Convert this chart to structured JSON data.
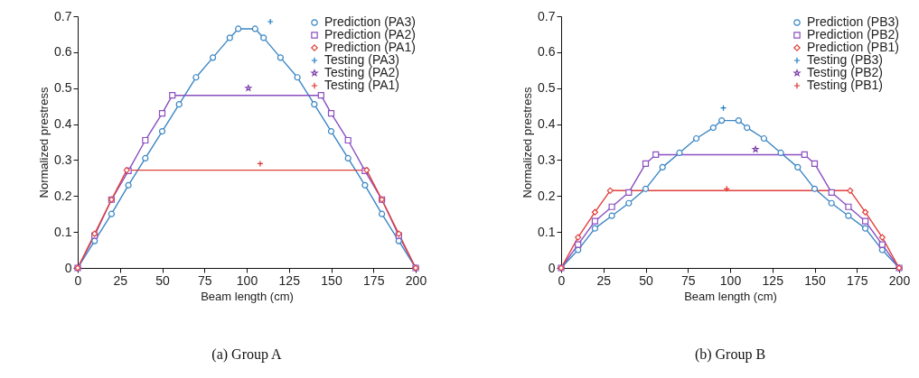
{
  "chart_data": [
    {
      "type": "line",
      "xlabel": "Beam length (cm)",
      "ylabel": "Normalized prestress",
      "xlim": [
        0,
        200
      ],
      "xticks": [
        0,
        25,
        50,
        75,
        100,
        125,
        150,
        175,
        200
      ],
      "ylim": [
        0,
        0.7
      ],
      "yticks": [
        0,
        0.1,
        0.2,
        0.3,
        0.4,
        0.5,
        0.6,
        0.7
      ],
      "legend": "top right",
      "annotations": [
        "(a) Group A"
      ],
      "series": [
        {
          "name": "Prediction (PA3)",
          "type": "line",
          "color": "#3a86c4",
          "marker": "circle",
          "x": [
            0,
            10,
            20,
            30,
            40,
            50,
            60,
            70,
            80,
            90,
            95,
            105,
            110,
            120,
            130,
            140,
            150,
            160,
            170,
            180,
            190,
            200
          ],
          "values": [
            0,
            0.075,
            0.15,
            0.23,
            0.305,
            0.38,
            0.455,
            0.53,
            0.585,
            0.64,
            0.665,
            0.665,
            0.64,
            0.585,
            0.53,
            0.455,
            0.38,
            0.305,
            0.23,
            0.15,
            0.075,
            0
          ]
        },
        {
          "name": "Prediction (PA2)",
          "type": "line",
          "color": "#8a4fc0",
          "marker": "square",
          "x": [
            0,
            10,
            20,
            30,
            40,
            50,
            56,
            144,
            150,
            160,
            170,
            180,
            190,
            200
          ],
          "values": [
            0,
            0.09,
            0.19,
            0.27,
            0.355,
            0.43,
            0.48,
            0.48,
            0.43,
            0.355,
            0.27,
            0.19,
            0.09,
            0
          ]
        },
        {
          "name": "Prediction (PA1)",
          "type": "line",
          "color": "#e0403c",
          "marker": "diamond",
          "x": [
            0,
            10,
            20,
            29,
            171,
            180,
            190,
            200
          ],
          "values": [
            0,
            0.095,
            0.19,
            0.272,
            0.272,
            0.19,
            0.095,
            0
          ]
        },
        {
          "name": "Testing (PA3)",
          "type": "scatter",
          "color": "#1f7ac0",
          "marker": "cross",
          "x": [
            114
          ],
          "values": [
            0.685
          ]
        },
        {
          "name": "Testing (PA2)",
          "type": "scatter",
          "color": "#7a3aa8",
          "marker": "star",
          "x": [
            101
          ],
          "values": [
            0.5
          ]
        },
        {
          "name": "Testing (PA1)",
          "type": "scatter",
          "color": "#e0302c",
          "marker": "cross",
          "x": [
            108
          ],
          "values": [
            0.29
          ]
        }
      ]
    },
    {
      "type": "line",
      "xlabel": "Beam length (cm)",
      "ylabel": "Normalized prestress",
      "xlim": [
        0,
        200
      ],
      "xticks": [
        0,
        25,
        50,
        75,
        100,
        125,
        150,
        175,
        200
      ],
      "ylim": [
        0,
        0.7
      ],
      "yticks": [
        0,
        0.1,
        0.2,
        0.3,
        0.4,
        0.5,
        0.6,
        0.7
      ],
      "legend": "top right",
      "annotations": [
        "(b) Group B"
      ],
      "series": [
        {
          "name": "Prediction (PB3)",
          "type": "line",
          "color": "#3a86c4",
          "marker": "circle",
          "x": [
            0,
            10,
            20,
            30,
            40,
            50,
            60,
            70,
            80,
            90,
            95,
            105,
            110,
            120,
            130,
            140,
            150,
            160,
            170,
            180,
            190,
            200
          ],
          "values": [
            0,
            0.05,
            0.11,
            0.145,
            0.18,
            0.22,
            0.28,
            0.32,
            0.36,
            0.39,
            0.41,
            0.41,
            0.39,
            0.36,
            0.32,
            0.28,
            0.22,
            0.18,
            0.145,
            0.11,
            0.05,
            0
          ]
        },
        {
          "name": "Prediction (PB2)",
          "type": "line",
          "color": "#8a4fc0",
          "marker": "square",
          "x": [
            0,
            10,
            20,
            30,
            40,
            50,
            56,
            144,
            150,
            160,
            170,
            180,
            190,
            200
          ],
          "values": [
            0,
            0.065,
            0.13,
            0.17,
            0.21,
            0.29,
            0.315,
            0.315,
            0.29,
            0.21,
            0.17,
            0.13,
            0.065,
            0
          ]
        },
        {
          "name": "Prediction (PB1)",
          "type": "line",
          "color": "#e0403c",
          "marker": "diamond",
          "x": [
            0,
            10,
            20,
            29,
            171,
            180,
            190,
            200
          ],
          "values": [
            0,
            0.085,
            0.155,
            0.215,
            0.215,
            0.155,
            0.085,
            0
          ]
        },
        {
          "name": "Testing (PB3)",
          "type": "scatter",
          "color": "#1f7ac0",
          "marker": "cross",
          "x": [
            96
          ],
          "values": [
            0.445
          ]
        },
        {
          "name": "Testing (PB2)",
          "type": "scatter",
          "color": "#7a3aa8",
          "marker": "star",
          "x": [
            115
          ],
          "values": [
            0.33
          ]
        },
        {
          "name": "Testing (PB1)",
          "type": "scatter",
          "color": "#e0302c",
          "marker": "cross",
          "x": [
            98
          ],
          "values": [
            0.22
          ]
        }
      ]
    }
  ]
}
